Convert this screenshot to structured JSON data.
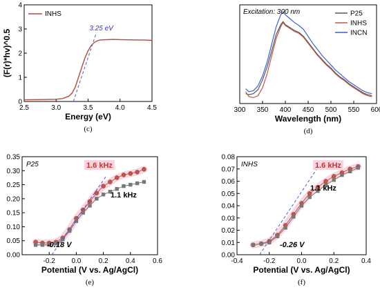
{
  "chart_data": [
    {
      "panel": "c",
      "type": "line",
      "title": "",
      "xlabel": "Energy (eV)",
      "ylabel": "(F(r)*hv)^0.5",
      "xlim": [
        2.5,
        4.5
      ],
      "ylim": [
        0,
        4
      ],
      "xticks": [
        2.5,
        3.0,
        3.5,
        4.0,
        4.5
      ],
      "xtick_labels": [
        "2.5",
        "3.0",
        "3.5",
        "4.0",
        "4.5"
      ],
      "yticks": [
        0,
        1,
        2,
        3,
        4
      ],
      "ytick_labels": [
        "0",
        "1",
        "2",
        "3",
        "4"
      ],
      "legend": "top-left",
      "grid": false,
      "series": [
        {
          "name": "INHS",
          "color": "#b5493a",
          "x": [
            2.5,
            2.8,
            3.0,
            3.1,
            3.2,
            3.25,
            3.3,
            3.35,
            3.4,
            3.45,
            3.5,
            3.55,
            3.6,
            3.65,
            3.7,
            3.8,
            3.9,
            4.0,
            4.2,
            4.4,
            4.5
          ],
          "y": [
            0.07,
            0.08,
            0.09,
            0.12,
            0.22,
            0.35,
            0.6,
            1.0,
            1.4,
            1.8,
            2.1,
            2.32,
            2.45,
            2.52,
            2.55,
            2.56,
            2.57,
            2.56,
            2.55,
            2.54,
            2.53
          ]
        }
      ],
      "tangent": {
        "x": [
          3.27,
          3.63
        ],
        "y": [
          0.0,
          2.85
        ],
        "color": "#5555dd"
      },
      "annotation": "3.25 eV",
      "panel_label": "(c)"
    },
    {
      "panel": "d",
      "type": "line",
      "title": "",
      "xlabel": "Wavelength (nm)",
      "ylabel": "",
      "xlim": [
        300,
        600
      ],
      "ylim": [
        0,
        1
      ],
      "xticks": [
        300,
        350,
        400,
        450,
        500,
        550,
        600
      ],
      "xtick_labels": [
        "300",
        "350",
        "400",
        "450",
        "500",
        "550",
        "600"
      ],
      "legend": "top-right",
      "grid": false,
      "annotation": "Excitation: 300 nm",
      "series": [
        {
          "name": "P25",
          "color": "#555555",
          "x": [
            313,
            320,
            330,
            340,
            350,
            360,
            370,
            380,
            390,
            395,
            400,
            410,
            420,
            430,
            440,
            450,
            460,
            470,
            480,
            490,
            500,
            510,
            520,
            530,
            540,
            550,
            560,
            570,
            580,
            590
          ],
          "y": [
            0.1,
            0.09,
            0.1,
            0.14,
            0.24,
            0.37,
            0.53,
            0.7,
            0.8,
            0.83,
            0.8,
            0.77,
            0.74,
            0.72,
            0.68,
            0.62,
            0.56,
            0.5,
            0.45,
            0.4,
            0.36,
            0.31,
            0.27,
            0.24,
            0.2,
            0.17,
            0.14,
            0.11,
            0.09,
            0.08
          ]
        },
        {
          "name": "INHS",
          "color": "#c0564b",
          "x": [
            313,
            320,
            330,
            340,
            350,
            360,
            370,
            380,
            390,
            395,
            400,
            410,
            420,
            430,
            440,
            450,
            460,
            470,
            480,
            490,
            500,
            510,
            520,
            530,
            540,
            550,
            560,
            570,
            580,
            590
          ],
          "y": [
            0.12,
            0.07,
            0.06,
            0.08,
            0.16,
            0.3,
            0.48,
            0.66,
            0.78,
            0.82,
            0.79,
            0.76,
            0.73,
            0.71,
            0.67,
            0.61,
            0.55,
            0.49,
            0.44,
            0.39,
            0.35,
            0.3,
            0.26,
            0.23,
            0.19,
            0.16,
            0.13,
            0.1,
            0.08,
            0.07
          ]
        },
        {
          "name": "INCN",
          "color": "#3b5fd6",
          "x": [
            313,
            320,
            330,
            340,
            350,
            360,
            370,
            380,
            390,
            395,
            400,
            410,
            420,
            430,
            440,
            450,
            460,
            470,
            480,
            490,
            500,
            510,
            520,
            530,
            540,
            550,
            560,
            570,
            580,
            590
          ],
          "y": [
            0.15,
            0.12,
            0.13,
            0.18,
            0.28,
            0.42,
            0.6,
            0.78,
            0.9,
            0.93,
            0.9,
            0.86,
            0.82,
            0.79,
            0.75,
            0.68,
            0.61,
            0.55,
            0.49,
            0.44,
            0.39,
            0.34,
            0.3,
            0.26,
            0.22,
            0.19,
            0.16,
            0.13,
            0.11,
            0.1
          ]
        }
      ],
      "panel_label": "(d)"
    },
    {
      "panel": "e",
      "type": "scatter",
      "title": "",
      "xlabel": "Potential (V vs. Ag/AgCl)",
      "ylabel": "",
      "xlim": [
        -0.4,
        0.6
      ],
      "ylim": [
        0,
        0.35
      ],
      "xticks": [
        -0.2,
        0.0,
        0.2,
        0.4,
        0.6
      ],
      "xtick_labels": [
        "-0.2",
        "0.0",
        "0.2",
        "0.4",
        "0.6"
      ],
      "yticks": [
        0.0,
        0.05,
        0.1,
        0.15,
        0.2,
        0.25,
        0.3,
        0.35
      ],
      "ytick_labels": [
        "0.00",
        "0.05",
        "0.10",
        "0.15",
        "0.20",
        "0.25",
        "0.30",
        "0.35"
      ],
      "label": "P25",
      "annotations": [
        "1.6 kHz",
        "1.1 kHz",
        "-0.18 V"
      ],
      "series": [
        {
          "name": "1.6 kHz",
          "color": "#c0564b",
          "marker": "circle",
          "x": [
            -0.3,
            -0.25,
            -0.2,
            -0.15,
            -0.1,
            -0.05,
            0.0,
            0.05,
            0.1,
            0.15,
            0.2,
            0.25,
            0.3,
            0.35,
            0.4,
            0.45,
            0.5
          ],
          "y": [
            0.045,
            0.042,
            0.042,
            0.045,
            0.06,
            0.09,
            0.13,
            0.16,
            0.19,
            0.22,
            0.245,
            0.26,
            0.275,
            0.285,
            0.29,
            0.295,
            0.305
          ]
        },
        {
          "name": "1.1 kHz",
          "color": "#777777",
          "marker": "square",
          "x": [
            -0.3,
            -0.25,
            -0.2,
            -0.15,
            -0.1,
            -0.05,
            0.0,
            0.05,
            0.1,
            0.15,
            0.2,
            0.25,
            0.3,
            0.35,
            0.4,
            0.45,
            0.5
          ],
          "y": [
            0.035,
            0.035,
            0.035,
            0.04,
            0.055,
            0.085,
            0.12,
            0.15,
            0.175,
            0.2,
            0.215,
            0.225,
            0.235,
            0.245,
            0.25,
            0.255,
            0.26
          ]
        }
      ],
      "tangent": {
        "x": [
          -0.18,
          0.22
        ],
        "y": [
          0.0,
          0.28
        ],
        "color": "#5555dd"
      },
      "panel_label": "(e)"
    },
    {
      "panel": "f",
      "type": "scatter",
      "title": "",
      "xlabel": "Potential (V vs. Ag/AgCl)",
      "ylabel": "",
      "xlim": [
        -0.4,
        0.4
      ],
      "ylim": [
        0,
        0.08
      ],
      "xticks": [
        -0.4,
        -0.2,
        0.0,
        0.2,
        0.4
      ],
      "xtick_labels": [
        "-0.4",
        "-0.2",
        "0.0",
        "0.2",
        "0.4"
      ],
      "yticks": [
        0.0,
        0.01,
        0.02,
        0.03,
        0.04,
        0.05,
        0.06,
        0.07,
        0.08
      ],
      "ytick_labels": [
        "0.00",
        "0.01",
        "0.02",
        "0.03",
        "0.04",
        "0.05",
        "0.06",
        "0.07",
        "0.08"
      ],
      "label": "INHS",
      "annotations": [
        "1.6 kHz",
        "1.1 kHz",
        "-0.26 V"
      ],
      "series": [
        {
          "name": "1.6 kHz",
          "color": "#c0564b",
          "marker": "circle",
          "x": [
            -0.3,
            -0.25,
            -0.2,
            -0.15,
            -0.1,
            -0.05,
            0.0,
            0.05,
            0.1,
            0.15,
            0.2,
            0.25,
            0.3,
            0.35
          ],
          "y": [
            0.008,
            0.009,
            0.011,
            0.016,
            0.024,
            0.033,
            0.042,
            0.05,
            0.055,
            0.06,
            0.064,
            0.067,
            0.07,
            0.072
          ]
        },
        {
          "name": "1.1 kHz",
          "color": "#777777",
          "marker": "square",
          "x": [
            -0.3,
            -0.25,
            -0.2,
            -0.15,
            -0.1,
            -0.05,
            0.0,
            0.05,
            0.1,
            0.15,
            0.2,
            0.25,
            0.3,
            0.35
          ],
          "y": [
            0.008,
            0.009,
            0.01,
            0.015,
            0.022,
            0.031,
            0.04,
            0.047,
            0.052,
            0.057,
            0.061,
            0.065,
            0.068,
            0.071
          ]
        }
      ],
      "tangent": {
        "x": [
          -0.26,
          0.12
        ],
        "y": [
          0.0,
          0.075
        ],
        "color": "#5555dd"
      },
      "panel_label": "(f)"
    }
  ]
}
